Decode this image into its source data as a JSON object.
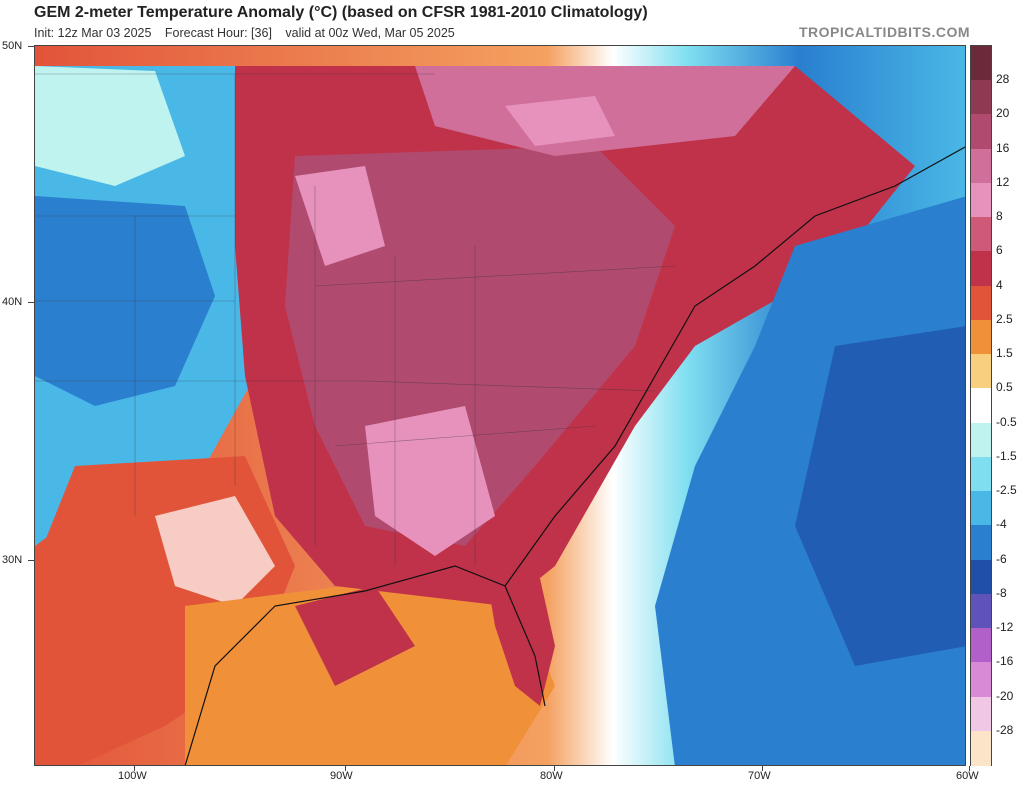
{
  "header": {
    "title": "GEM 2-meter Temperature Anomaly (°C) (based on CFSR 1981-2010 Climatology)",
    "init": "Init: 12z Mar 03 2025",
    "forecast_hour": "Forecast Hour: [36]",
    "valid": "valid at 00z Wed, Mar 05 2025",
    "brand": "TROPICALTIDBITS.COM"
  },
  "map": {
    "lat_labels": [
      "50N",
      "40N",
      "30N"
    ],
    "lon_labels": [
      "100W",
      "90W",
      "80W",
      "70W",
      "60W"
    ]
  },
  "colorbar": {
    "labels": [
      "28",
      "20",
      "16",
      "12",
      "8",
      "6",
      "4",
      "2.5",
      "1.5",
      "0.5",
      "-0.5",
      "-1.5",
      "-2.5",
      "-4",
      "-6",
      "-8",
      "-12",
      "-16",
      "-20",
      "-28"
    ],
    "colors": [
      "#6b2a3a",
      "#8e3a52",
      "#b04a6e",
      "#cf6f9a",
      "#e692bd",
      "#cf5a78",
      "#c0324a",
      "#e2543a",
      "#f0913a",
      "#f8cf7e",
      "#ffffff",
      "#bff3f0",
      "#7fdff0",
      "#4ab8e6",
      "#2a7fcf",
      "#1f4fa8",
      "#5f52b8",
      "#b060c8",
      "#d88ad6",
      "#f0c8e6",
      "#fbe4c8"
    ]
  }
}
